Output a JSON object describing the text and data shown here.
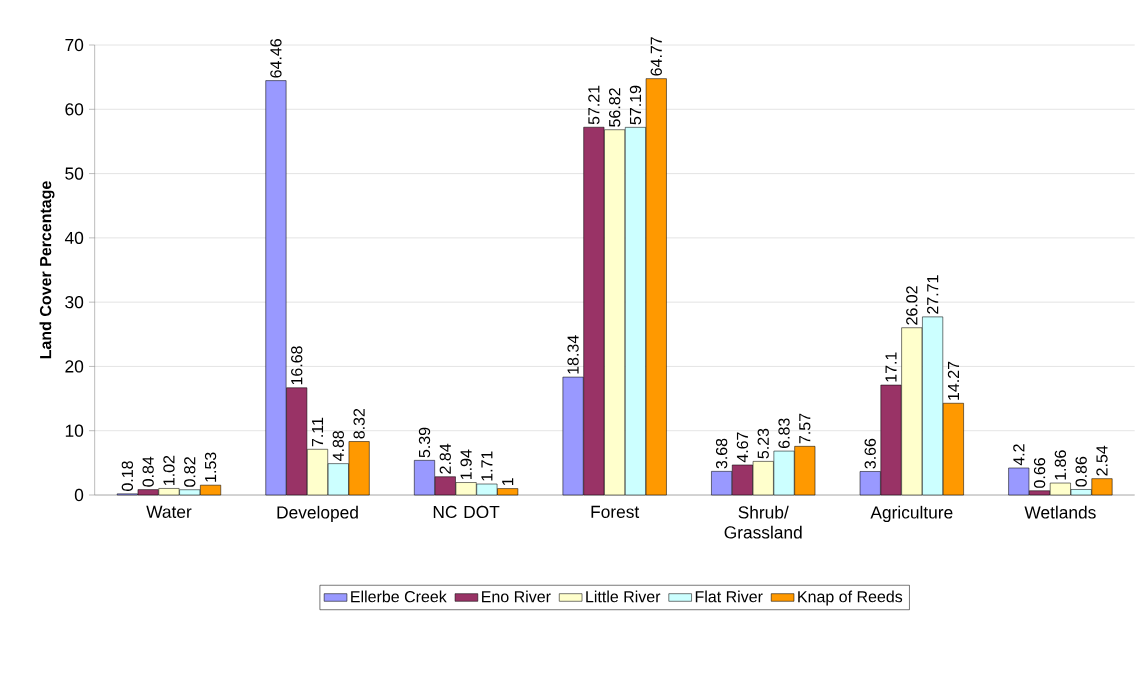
{
  "chart_data": {
    "type": "bar",
    "ylabel": "Land Cover Percentage",
    "categories": [
      "Water",
      "Developed",
      "NC DOT",
      "Forest",
      "Shrub/ Grassland",
      "Agriculture",
      "Wetlands"
    ],
    "series": [
      {
        "name": "Ellerbe Creek",
        "color": "#9999ff",
        "values": [
          0.18,
          64.46,
          5.39,
          18.34,
          3.68,
          3.66,
          4.2
        ]
      },
      {
        "name": "Eno River",
        "color": "#993366",
        "values": [
          0.84,
          16.68,
          2.84,
          57.21,
          4.67,
          17.1,
          0.66
        ]
      },
      {
        "name": "Little River",
        "color": "#ffffcc",
        "values": [
          1.02,
          7.11,
          1.94,
          56.82,
          5.23,
          26.02,
          1.86
        ]
      },
      {
        "name": "Flat River",
        "color": "#ccffff",
        "values": [
          0.82,
          4.88,
          1.71,
          57.19,
          6.83,
          27.71,
          0.86
        ]
      },
      {
        "name": "Knap of Reeds",
        "color": "#ff9900",
        "values": [
          1.53,
          8.32,
          1,
          64.77,
          7.57,
          14.27,
          2.54
        ]
      }
    ],
    "ylim": [
      0,
      70
    ],
    "yticks": [
      0,
      10,
      20,
      30,
      40,
      50,
      60,
      70
    ],
    "grid": "y",
    "legend": "bottom",
    "data_labels": true
  }
}
